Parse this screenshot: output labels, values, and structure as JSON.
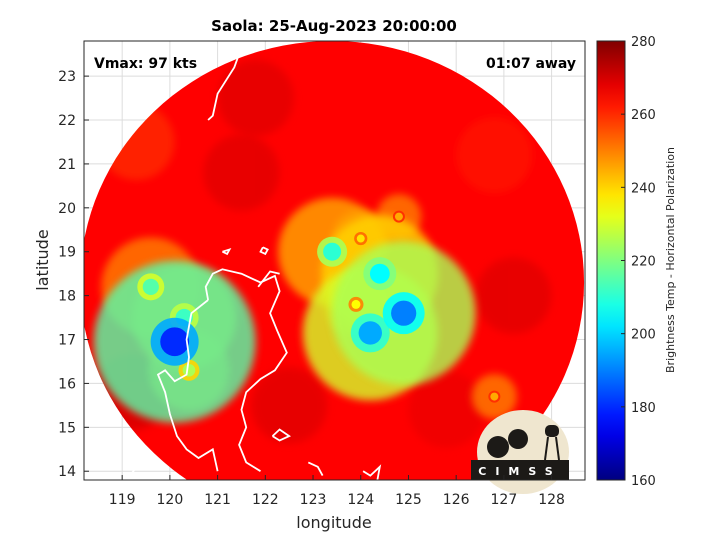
{
  "chart_data": {
    "type": "heatmap",
    "title": "Saola: 25-Aug-2023 20:00:00",
    "xlabel": "longitude",
    "ylabel": "latitude",
    "xlim": [
      118.2,
      128.7
    ],
    "ylim": [
      13.8,
      23.8
    ],
    "x_ticks": [
      119,
      120,
      121,
      122,
      123,
      124,
      125,
      126,
      127,
      128
    ],
    "y_ticks": [
      14,
      15,
      16,
      17,
      18,
      19,
      20,
      21,
      22,
      23
    ],
    "grid": true,
    "annotations": {
      "vmax": "Vmax: 97 kts",
      "time_away": "01:07 away"
    },
    "colorbar": {
      "label": "Brightness Temp - Horizontal Polarization",
      "range": [
        160,
        280
      ],
      "ticks": [
        160,
        180,
        200,
        220,
        240,
        260,
        280
      ],
      "colormap": "jet"
    },
    "field": {
      "background_value": 265,
      "swath_center": [
        123.4,
        18.3
      ],
      "swath_radius_deg": 5.5,
      "features": [
        {
          "lon": 124.9,
          "lat": 17.6,
          "value": 190
        },
        {
          "lon": 124.2,
          "lat": 17.15,
          "value": 195
        },
        {
          "lon": 124.4,
          "lat": 18.5,
          "value": 205
        },
        {
          "lon": 123.4,
          "lat": 19.0,
          "value": 210
        },
        {
          "lon": 120.1,
          "lat": 16.95,
          "value": 180
        },
        {
          "lon": 119.6,
          "lat": 18.2,
          "value": 215
        },
        {
          "lon": 120.3,
          "lat": 17.5,
          "value": 212
        },
        {
          "lon": 123.9,
          "lat": 17.8,
          "value": 235
        },
        {
          "lon": 124.0,
          "lat": 19.3,
          "value": 238
        },
        {
          "lon": 124.8,
          "lat": 19.8,
          "value": 245
        },
        {
          "lon": 126.8,
          "lat": 15.7,
          "value": 245
        },
        {
          "lon": 120.4,
          "lat": 16.3,
          "value": 225
        }
      ]
    }
  },
  "logo": {
    "text": "CIMSS"
  },
  "colors": {
    "coast": "#ffffff",
    "axis": "#262626",
    "grid": "#dcdcdc"
  }
}
